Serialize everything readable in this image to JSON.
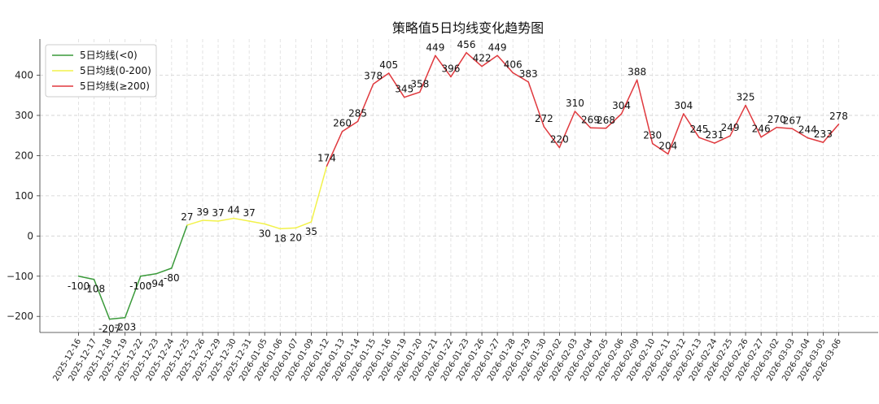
{
  "chart_data": {
    "type": "line",
    "title": "策略值5日均线变化趋势图",
    "xlabel": "",
    "ylabel": "",
    "ylim": [
      -240,
      490
    ],
    "yticks": [
      -200,
      -100,
      0,
      100,
      200,
      300,
      400
    ],
    "ytick_labels": [
      "−200",
      "−100",
      "0",
      "100",
      "200",
      "300",
      "400"
    ],
    "grid": true,
    "legend_position": "top-left",
    "categories": [
      "2025-12-16",
      "2025-12-17",
      "2025-12-18",
      "2025-12-19",
      "2025-12-22",
      "2025-12-23",
      "2025-12-24",
      "2025-12-25",
      "2025-12-26",
      "2025-12-29",
      "2025-12-30",
      "2025-12-31",
      "2026-01-05",
      "2026-01-06",
      "2026-01-07",
      "2026-01-09",
      "2026-01-12",
      "2026-01-13",
      "2026-01-14",
      "2026-01-15",
      "2026-01-16",
      "2026-01-19",
      "2026-01-20",
      "2026-01-21",
      "2026-01-22",
      "2026-01-23",
      "2026-01-26",
      "2026-01-27",
      "2026-01-28",
      "2026-01-29",
      "2026-01-30",
      "2026-02-02",
      "2026-02-03",
      "2026-02-04",
      "2026-02-05",
      "2026-02-06",
      "2026-02-09",
      "2026-02-10",
      "2026-02-11",
      "2026-02-12",
      "2026-02-13",
      "2026-02-24",
      "2026-02-25",
      "2026-02-26",
      "2026-02-27",
      "2026-03-02",
      "2026-03-03",
      "2026-03-04",
      "2026-03-05",
      "2026-03-06"
    ],
    "values": [
      -100,
      -108,
      -207,
      -203,
      -100,
      -94,
      -80,
      27,
      39,
      37,
      44,
      37,
      30,
      18,
      20,
      35,
      174,
      260,
      285,
      378,
      405,
      345,
      358,
      449,
      396,
      456,
      422,
      449,
      406,
      383,
      272,
      220,
      310,
      269,
      268,
      304,
      388,
      230,
      204,
      304,
      245,
      231,
      249,
      325,
      246,
      270,
      267,
      244,
      233,
      278
    ],
    "data_labels": [
      "-100",
      "-108",
      "-207",
      "-203",
      "-100",
      "-94",
      "-80",
      "27",
      "39",
      "37",
      "44",
      "37",
      "30",
      "18",
      "20",
      "35",
      "174",
      "260",
      "285",
      "378",
      "405",
      "345",
      "358",
      "449",
      "396",
      "456",
      "422",
      "449",
      "406",
      "383",
      "272",
      "220",
      "310",
      "269",
      "268",
      "304",
      "388",
      "230",
      "204",
      "304",
      "245",
      "231",
      "249",
      "325",
      "246",
      "270",
      "267",
      "244",
      "233",
      "278"
    ],
    "series": [
      {
        "name": "5日均线(<0)",
        "color": "#3a9a3a"
      },
      {
        "name": "5日均线(0-200)",
        "color": "#f2f24a"
      },
      {
        "name": "5日均线(≥200)",
        "color": "#e0393e"
      }
    ],
    "thresholds": [
      0,
      200
    ]
  }
}
